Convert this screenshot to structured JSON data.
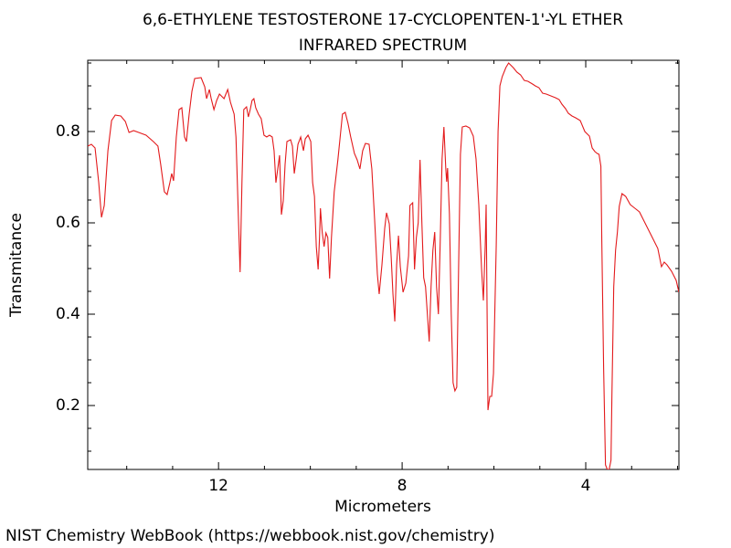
{
  "chart_data": {
    "type": "line",
    "title": "6,6-ETHYLENE TESTOSTERONE 17-CYCLOPENTEN-1'-YL ETHER",
    "subtitle": "INFRARED SPECTRUM",
    "x_label": "Micrometers",
    "y_label": "Transmitance",
    "source": "NIST Chemistry WebBook (https://webbook.nist.gov/chemistry)",
    "xlim": [
      14.85,
      1.97
    ],
    "ylim": [
      0.06,
      0.956
    ],
    "xticks": [
      12,
      8,
      4
    ],
    "xminorticks": [
      14,
      13,
      11,
      10,
      9,
      7,
      6,
      5,
      3,
      2
    ],
    "yticks": [
      0.2,
      0.4,
      0.6,
      0.8
    ],
    "yminorticks": [
      0.1,
      0.15,
      0.25,
      0.3,
      0.35,
      0.45,
      0.5,
      0.55,
      0.65,
      0.7,
      0.75,
      0.85,
      0.9,
      0.95
    ],
    "grid": false,
    "x": [
      14.85,
      14.77,
      14.69,
      14.61,
      14.55,
      14.49,
      14.41,
      14.33,
      14.25,
      14.13,
      14.03,
      13.95,
      13.85,
      13.74,
      13.58,
      13.42,
      13.32,
      13.26,
      13.18,
      13.12,
      13.06,
      13.02,
      12.98,
      12.92,
      12.86,
      12.8,
      12.74,
      12.7,
      12.64,
      12.58,
      12.52,
      12.38,
      12.3,
      12.26,
      12.2,
      12.16,
      12.1,
      12.04,
      11.98,
      11.88,
      11.8,
      11.74,
      11.66,
      11.62,
      11.56,
      11.53,
      11.49,
      11.45,
      11.39,
      11.35,
      11.31,
      11.27,
      11.23,
      11.19,
      11.13,
      11.07,
      11.01,
      10.95,
      10.89,
      10.83,
      10.79,
      10.75,
      10.71,
      10.67,
      10.63,
      10.59,
      10.55,
      10.51,
      10.43,
      10.39,
      10.35,
      10.31,
      10.27,
      10.21,
      10.15,
      10.11,
      10.05,
      9.99,
      9.95,
      9.91,
      9.87,
      9.83,
      9.8,
      9.78,
      9.74,
      9.7,
      9.66,
      9.62,
      9.58,
      9.54,
      9.48,
      9.4,
      9.34,
      9.3,
      9.24,
      9.18,
      9.12,
      9.04,
      8.98,
      8.92,
      8.86,
      8.8,
      8.72,
      8.66,
      8.6,
      8.54,
      8.5,
      8.44,
      8.38,
      8.34,
      8.28,
      8.24,
      8.2,
      8.16,
      8.12,
      8.08,
      8.04,
      7.98,
      7.92,
      7.86,
      7.83,
      7.77,
      7.73,
      7.69,
      7.65,
      7.61,
      7.57,
      7.53,
      7.49,
      7.45,
      7.41,
      7.37,
      7.33,
      7.29,
      7.25,
      7.21,
      7.17,
      7.13,
      7.09,
      7.05,
      7.03,
      7.01,
      6.97,
      6.93,
      6.89,
      6.85,
      6.81,
      6.77,
      6.73,
      6.69,
      6.61,
      6.53,
      6.45,
      6.39,
      6.33,
      6.27,
      6.23,
      6.19,
      6.17,
      6.13,
      6.09,
      6.05,
      6.01,
      5.95,
      5.91,
      5.87,
      5.82,
      5.74,
      5.68,
      5.58,
      5.5,
      5.42,
      5.34,
      5.26,
      5.16,
      5.1,
      5.02,
      4.94,
      4.86,
      4.76,
      4.66,
      4.58,
      4.52,
      4.44,
      4.38,
      4.3,
      4.22,
      4.12,
      4.02,
      3.92,
      3.86,
      3.8,
      3.75,
      3.71,
      3.67,
      3.65,
      3.61,
      3.57,
      3.53,
      3.49,
      3.45,
      3.43,
      3.39,
      3.35,
      3.31,
      3.27,
      3.21,
      3.13,
      3.03,
      2.93,
      2.83,
      2.73,
      2.63,
      2.53,
      2.43,
      2.35,
      2.29,
      2.23,
      2.13,
      2.03,
      1.97
    ],
    "series": [
      {
        "name": "Transmitance",
        "color": "#e31a1c",
        "values": [
          0.768,
          0.772,
          0.764,
          0.688,
          0.612,
          0.638,
          0.758,
          0.824,
          0.836,
          0.834,
          0.822,
          0.798,
          0.802,
          0.798,
          0.792,
          0.778,
          0.768,
          0.728,
          0.668,
          0.662,
          0.688,
          0.708,
          0.692,
          0.788,
          0.848,
          0.852,
          0.788,
          0.778,
          0.838,
          0.888,
          0.916,
          0.918,
          0.898,
          0.872,
          0.892,
          0.872,
          0.848,
          0.868,
          0.882,
          0.872,
          0.892,
          0.864,
          0.838,
          0.788,
          0.588,
          0.492,
          0.688,
          0.848,
          0.854,
          0.832,
          0.848,
          0.868,
          0.872,
          0.852,
          0.838,
          0.828,
          0.792,
          0.788,
          0.792,
          0.788,
          0.758,
          0.688,
          0.718,
          0.748,
          0.618,
          0.648,
          0.728,
          0.778,
          0.782,
          0.768,
          0.708,
          0.738,
          0.772,
          0.788,
          0.758,
          0.784,
          0.792,
          0.778,
          0.688,
          0.658,
          0.548,
          0.498,
          0.568,
          0.632,
          0.578,
          0.548,
          0.578,
          0.568,
          0.478,
          0.568,
          0.668,
          0.738,
          0.798,
          0.838,
          0.842,
          0.818,
          0.788,
          0.752,
          0.738,
          0.718,
          0.758,
          0.774,
          0.772,
          0.718,
          0.608,
          0.488,
          0.444,
          0.508,
          0.588,
          0.622,
          0.598,
          0.528,
          0.444,
          0.384,
          0.508,
          0.572,
          0.504,
          0.448,
          0.468,
          0.528,
          0.638,
          0.644,
          0.498,
          0.568,
          0.6,
          0.738,
          0.6,
          0.48,
          0.46,
          0.4,
          0.34,
          0.46,
          0.54,
          0.58,
          0.46,
          0.4,
          0.56,
          0.74,
          0.81,
          0.72,
          0.69,
          0.72,
          0.62,
          0.4,
          0.25,
          0.232,
          0.24,
          0.5,
          0.75,
          0.81,
          0.812,
          0.808,
          0.79,
          0.74,
          0.64,
          0.5,
          0.43,
          0.55,
          0.64,
          0.19,
          0.22,
          0.22,
          0.27,
          0.55,
          0.8,
          0.9,
          0.92,
          0.94,
          0.95,
          0.94,
          0.93,
          0.924,
          0.912,
          0.91,
          0.904,
          0.9,
          0.896,
          0.884,
          0.882,
          0.878,
          0.874,
          0.87,
          0.86,
          0.85,
          0.84,
          0.834,
          0.83,
          0.824,
          0.8,
          0.79,
          0.764,
          0.756,
          0.752,
          0.75,
          0.724,
          0.56,
          0.28,
          0.07,
          0.06,
          0.06,
          0.08,
          0.22,
          0.46,
          0.54,
          0.58,
          0.636,
          0.664,
          0.658,
          0.64,
          0.632,
          0.624,
          0.604,
          0.584,
          0.564,
          0.544,
          0.504,
          0.514,
          0.508,
          0.494,
          0.474,
          0.448
        ]
      }
    ]
  }
}
